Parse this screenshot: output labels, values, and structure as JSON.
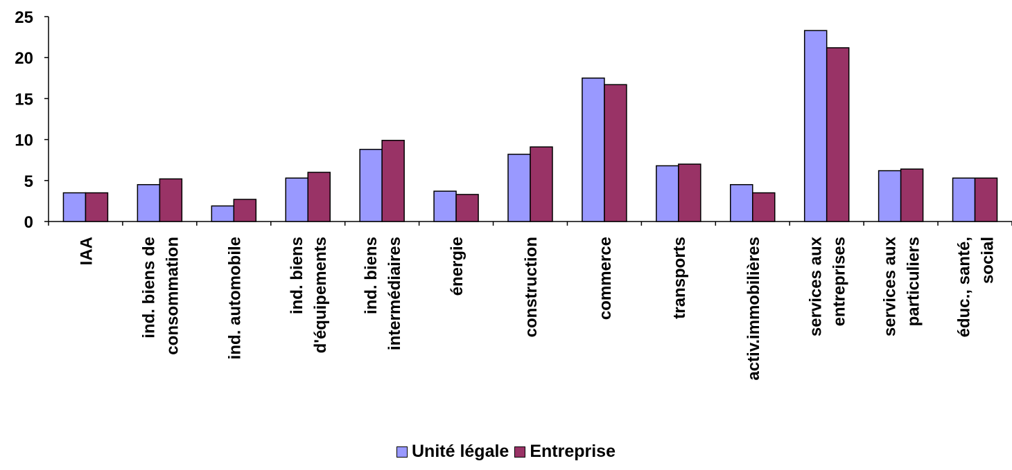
{
  "chart_data": {
    "type": "bar",
    "title": "",
    "xlabel": "",
    "ylabel": "",
    "ylim": [
      0,
      25
    ],
    "yticks": [
      0,
      5,
      10,
      15,
      20,
      25
    ],
    "grid": false,
    "legend_position": "bottom",
    "categories": [
      [
        "IAA"
      ],
      [
        "ind. biens de",
        "consommation"
      ],
      [
        "ind. automobile"
      ],
      [
        "ind. biens",
        "d'équipements"
      ],
      [
        "ind. biens",
        "intermédiaires"
      ],
      [
        "énergie"
      ],
      [
        "construction"
      ],
      [
        "commerce"
      ],
      [
        "transports"
      ],
      [
        "activ.immobilières"
      ],
      [
        "services aux",
        "entreprises"
      ],
      [
        "services aux",
        "particuliers"
      ],
      [
        "éduc., santé,",
        "social"
      ]
    ],
    "series": [
      {
        "name": "Unité légale",
        "color": "#9999ff",
        "values": [
          3.5,
          4.5,
          1.9,
          5.3,
          8.8,
          3.7,
          8.2,
          17.5,
          6.8,
          4.5,
          23.3,
          6.2,
          5.3
        ]
      },
      {
        "name": "Entreprise",
        "color": "#993366",
        "values": [
          3.5,
          5.2,
          2.7,
          6.0,
          9.9,
          3.3,
          9.1,
          16.7,
          7.0,
          3.5,
          21.2,
          6.4,
          5.3
        ]
      }
    ]
  }
}
